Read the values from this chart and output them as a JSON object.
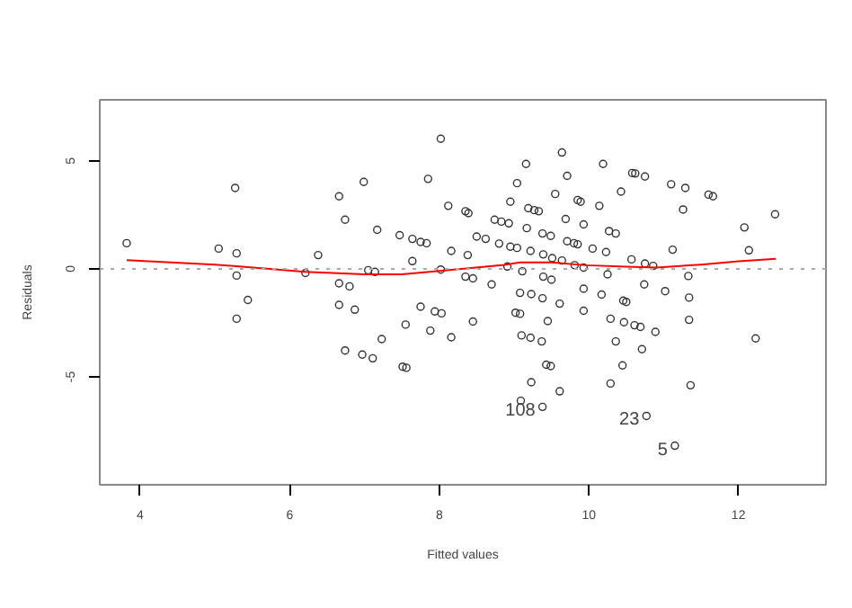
{
  "chart_data": {
    "type": "scatter",
    "xlabel": "Fitted values",
    "ylabel": "Residuals",
    "xlim": [
      3.46,
      13.17
    ],
    "ylim": [
      -10,
      7.83
    ],
    "xticks": [
      4,
      6,
      8,
      10,
      12
    ],
    "yticks": [
      -5,
      0,
      5
    ],
    "grid": false,
    "series": [
      {
        "marker": "circle",
        "color": "#333333",
        "x": [
          3.82,
          5.27,
          5.05,
          5.29,
          5.29,
          5.44,
          5.29,
          6.21,
          6.38,
          6.66,
          6.99,
          6.74,
          7.17,
          7.05,
          7.14,
          6.66,
          6.8,
          6.66,
          6.87,
          6.74,
          6.97,
          7.11,
          8.02,
          7.85,
          7.47,
          7.64,
          7.75,
          7.83,
          7.64,
          8.16,
          8.38,
          8.02,
          8.12,
          8.35,
          8.39,
          8.74,
          8.83,
          8.93,
          8.5,
          8.62,
          8.8,
          8.95,
          9.04,
          8.35,
          8.45,
          8.7,
          7.75,
          7.94,
          8.03,
          7.55,
          7.88,
          8.16,
          8.45,
          7.23,
          7.51,
          7.56,
          8.91,
          9.11,
          9.08,
          9.23,
          9.02,
          9.08,
          9.1,
          9.22,
          9.37,
          8.95,
          9.04,
          9.16,
          9.19,
          9.27,
          9.33,
          9.17,
          9.38,
          9.49,
          9.22,
          9.39,
          9.51,
          9.64,
          9.39,
          9.5,
          9.38,
          9.61,
          9.45,
          9.43,
          9.49,
          9.23,
          9.09,
          9.61,
          9.38,
          9.64,
          9.71,
          9.55,
          9.85,
          9.89,
          9.69,
          9.93,
          10.19,
          10.14,
          9.71,
          9.8,
          9.85,
          9.81,
          9.93,
          10.05,
          10.23,
          9.93,
          10.17,
          9.93,
          10.27,
          10.36,
          10.43,
          10.58,
          10.62,
          10.75,
          11.1,
          11.29,
          11.26,
          11.6,
          11.66,
          12.49,
          12.08,
          12.14,
          11.12,
          10.57,
          10.75,
          10.86,
          11.33,
          10.74,
          11.02,
          10.25,
          11.34,
          10.46,
          10.5,
          11.34,
          10.29,
          10.47,
          10.61,
          10.69,
          10.89,
          10.36,
          10.71,
          12.23,
          10.45,
          10.29,
          11.36,
          10.77,
          11.15
        ],
        "values": [
          1.19,
          3.75,
          0.94,
          0.72,
          -0.31,
          -1.44,
          -2.31,
          -0.19,
          0.64,
          3.36,
          4.03,
          2.28,
          1.81,
          -0.06,
          -0.14,
          -0.67,
          -0.81,
          -1.67,
          -1.89,
          -3.78,
          -3.97,
          -4.14,
          6.03,
          4.17,
          1.56,
          1.39,
          1.25,
          1.19,
          0.36,
          0.83,
          0.64,
          -0.03,
          2.92,
          2.67,
          2.58,
          2.28,
          2.19,
          2.11,
          1.5,
          1.39,
          1.17,
          1.03,
          0.97,
          -0.36,
          -0.44,
          -0.72,
          -1.75,
          -1.97,
          -2.06,
          -2.58,
          -2.86,
          -3.17,
          -2.44,
          -3.25,
          -4.53,
          -4.58,
          0.11,
          -0.11,
          -1.11,
          -1.17,
          -2.03,
          -2.08,
          -3.08,
          -3.19,
          -3.36,
          3.11,
          3.97,
          4.86,
          2.81,
          2.72,
          2.67,
          1.89,
          1.64,
          1.53,
          0.83,
          0.67,
          0.5,
          0.39,
          -0.36,
          -0.5,
          -1.36,
          -1.61,
          -2.42,
          -4.44,
          -4.5,
          -5.25,
          -6.11,
          -5.67,
          -6.39,
          5.39,
          4.31,
          3.47,
          3.19,
          3.11,
          2.31,
          2.06,
          4.86,
          2.92,
          1.28,
          1.19,
          1.14,
          0.17,
          0.06,
          0.94,
          0.78,
          -0.92,
          -1.19,
          -1.94,
          1.75,
          1.64,
          3.58,
          4.44,
          4.42,
          4.28,
          3.92,
          3.75,
          2.75,
          3.44,
          3.36,
          2.53,
          1.92,
          0.86,
          0.89,
          0.44,
          0.25,
          0.14,
          -0.33,
          -0.72,
          -1.03,
          -0.25,
          -1.33,
          -1.47,
          -1.53,
          -2.36,
          -2.31,
          -2.47,
          -2.61,
          -2.69,
          -2.92,
          -3.36,
          -3.72,
          -3.22,
          -4.47,
          -5.31,
          -5.39,
          -6.81,
          -8.19
        ]
      },
      {
        "type": "line",
        "marker": "none",
        "color": "#ff0000",
        "x": [
          3.82,
          5.0,
          6.21,
          7.0,
          7.5,
          8.0,
          8.87,
          9.08,
          9.5,
          9.95,
          10.5,
          10.9,
          11.5,
          12.0,
          12.5
        ],
        "values": [
          0.4,
          0.2,
          -0.14,
          -0.25,
          -0.25,
          -0.1,
          0.19,
          0.3,
          0.3,
          0.17,
          0.1,
          0.06,
          0.2,
          0.35,
          0.47
        ]
      }
    ],
    "ref_lines": [
      {
        "axis": "y",
        "value": 0,
        "color": "#aaaaaa",
        "line_style": "dotted"
      }
    ],
    "annotations": [
      {
        "text": "108",
        "x": 9.38,
        "y": -6.39
      },
      {
        "text": "23",
        "x": 10.77,
        "y": -6.81
      },
      {
        "text": "5",
        "x": 11.15,
        "y": -8.19
      }
    ]
  }
}
